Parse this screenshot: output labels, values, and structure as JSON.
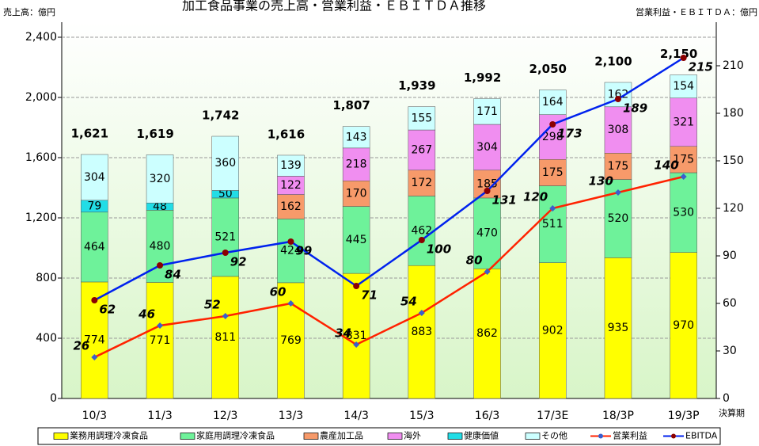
{
  "chart_data": {
    "type": "stacked_bar_line",
    "title": "加工食品事業の売上高・営業利益・ＥＢＩＴＤＡ推移",
    "y_label": "売上高：億円",
    "y2_label": "営業利益・ＥＢＩＴＤＡ：億円",
    "x_label": "決算期",
    "categories": [
      "10/3",
      "11/3",
      "12/3",
      "13/3",
      "14/3",
      "15/3",
      "16/3",
      "17/3E",
      "18/3P",
      "19/3P"
    ],
    "ylim": [
      0,
      2500
    ],
    "yticks": [
      0,
      400,
      800,
      {
        "value": 1200,
        "label": "1,200"
      },
      {
        "value": 1600,
        "label": "1,600"
      },
      {
        "value": 2000,
        "label": "2,000"
      },
      {
        "value": 2400,
        "label": "2,400"
      }
    ],
    "y2lim": [
      0,
      237.5
    ],
    "y2ticks": [
      0,
      30,
      60,
      90,
      120,
      150,
      180,
      210
    ],
    "grid": true,
    "series": [
      {
        "name": "業務用調理冷凍食品",
        "color": "#ffff00",
        "values": [
          774,
          771,
          811,
          769,
          831,
          883,
          862,
          902,
          935,
          970
        ]
      },
      {
        "name": "家庭用調理冷凍食品",
        "color": "#6ef29a",
        "values": [
          464,
          480,
          521,
          424,
          445,
          462,
          470,
          511,
          520,
          530
        ]
      },
      {
        "name": "農産加工品",
        "color": "#f79a6a",
        "values": [
          null,
          null,
          null,
          162,
          170,
          172,
          185,
          175,
          175,
          175
        ]
      },
      {
        "name": "海外",
        "color": "#f08ef0",
        "values": [
          null,
          null,
          null,
          122,
          218,
          267,
          304,
          298,
          308,
          321
        ]
      },
      {
        "name": "健康価値",
        "color": "#22dde6",
        "values": [
          79,
          48,
          50,
          null,
          null,
          null,
          null,
          null,
          null,
          null
        ]
      },
      {
        "name": "その他",
        "color": "#ccffff",
        "values": [
          304,
          320,
          360,
          139,
          143,
          155,
          171,
          164,
          162,
          154
        ]
      },
      {
        "name": "営業利益",
        "type": "line",
        "axis": "y2",
        "color": "#ff2200",
        "marker_color": "#3a5fcd",
        "values": [
          26,
          46,
          52,
          60,
          34,
          54,
          80,
          120,
          130,
          140
        ]
      },
      {
        "name": "EBITDA",
        "type": "line",
        "axis": "y2",
        "color": "#0022ee",
        "marker_color": "#8b0000",
        "values": [
          62,
          84,
          92,
          99,
          71,
          100,
          131,
          173,
          189,
          215
        ]
      }
    ],
    "totals": {
      "values": [
        1621,
        1619,
        1742,
        1616,
        1807,
        1939,
        1992,
        2050,
        2100,
        2150
      ],
      "value_labels": [
        "1,621",
        "1,619",
        "1,742",
        "1,616",
        "1,807",
        "1,939",
        "1,992",
        "2,050",
        "2,100",
        "2,150"
      ]
    }
  }
}
